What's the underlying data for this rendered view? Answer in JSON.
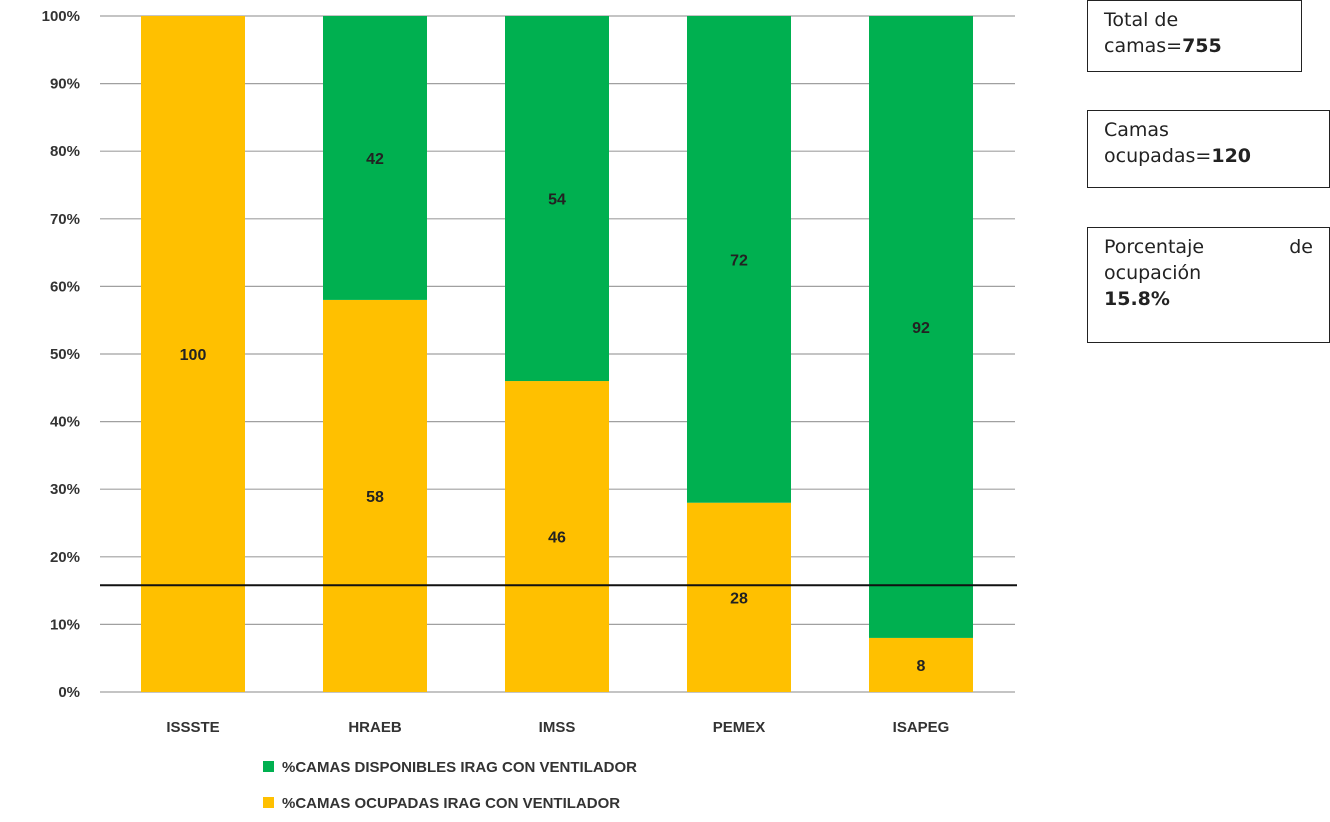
{
  "chart_data": {
    "type": "bar",
    "stacked": true,
    "categories": [
      "ISSSTE",
      "HRAEB",
      "IMSS",
      "PEMEX",
      "ISAPEG"
    ],
    "series": [
      {
        "name": "%CAMAS OCUPADAS IRAG CON VENTILADOR",
        "values": [
          100,
          58,
          46,
          28,
          8
        ],
        "color": "#FFC000"
      },
      {
        "name": "%CAMAS DISPONIBLES IRAG  CON VENTILADOR",
        "values": [
          0,
          42,
          54,
          72,
          92
        ],
        "color": "#00B050"
      }
    ],
    "data_labels": [
      [
        "100",
        "58",
        "46",
        "28",
        "8"
      ],
      [
        "",
        "42",
        "54",
        "72",
        "92"
      ]
    ],
    "y_ticks": [
      "0%",
      "10%",
      "20%",
      "30%",
      "40%",
      "50%",
      "60%",
      "70%",
      "80%",
      "90%",
      "100%"
    ],
    "ylim": [
      0,
      100
    ],
    "grid": true,
    "reference_line": 15.8,
    "legend_position": "bottom",
    "legend_order": [
      1,
      0
    ]
  },
  "info": {
    "total_label": "Total de",
    "total_label2": "camas=",
    "total_value": "755",
    "ocupadas_label": "Camas",
    "ocupadas_label2": "ocupadas=",
    "ocupadas_value": "120",
    "porcentaje_word1": "Porcentaje",
    "porcentaje_word2": "de",
    "porcentaje_label2": "ocupación",
    "porcentaje_value": "15.8%"
  }
}
